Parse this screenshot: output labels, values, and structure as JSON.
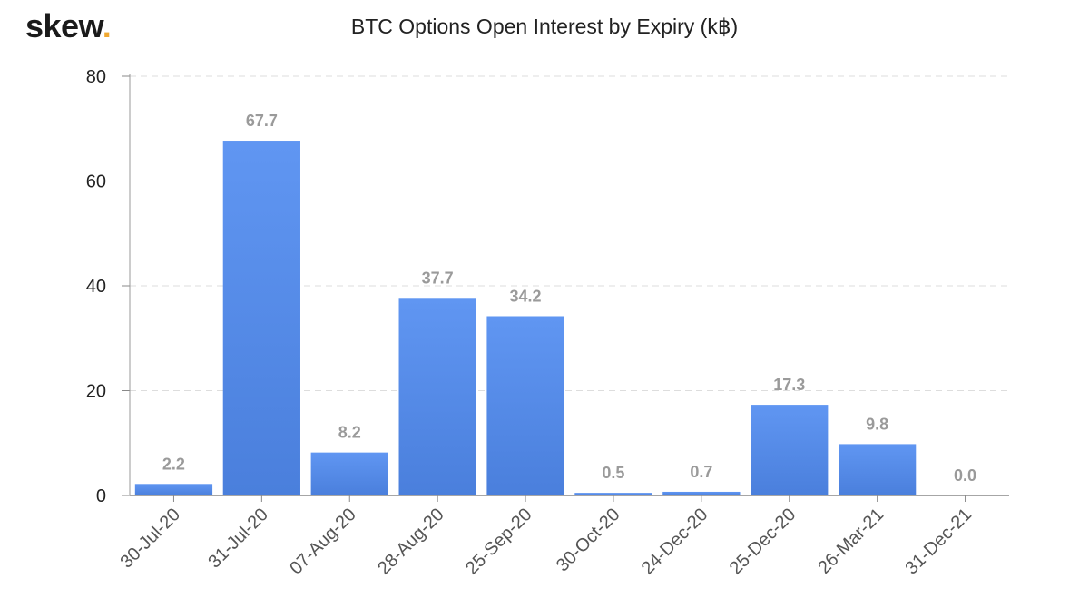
{
  "logo": {
    "text": "skew",
    "dot": "."
  },
  "chart_data": {
    "type": "bar",
    "title": "BTC Options Open Interest by Expiry (k฿)",
    "categories": [
      "30-Jul-20",
      "31-Jul-20",
      "07-Aug-20",
      "28-Aug-20",
      "25-Sep-20",
      "30-Oct-20",
      "24-Dec-20",
      "25-Dec-20",
      "26-Mar-21",
      "31-Dec-21"
    ],
    "values": [
      2.2,
      67.7,
      8.2,
      37.7,
      34.2,
      0.5,
      0.7,
      17.3,
      9.8,
      0.0
    ],
    "data_labels": [
      "2.2",
      "67.7",
      "8.2",
      "37.7",
      "34.2",
      "0.5",
      "0.7",
      "17.3",
      "9.8",
      "0.0"
    ],
    "ylim": [
      0,
      80
    ],
    "yticks": [
      0,
      20,
      40,
      60,
      80
    ],
    "grid": true,
    "legend": "none",
    "bar_color_top": "#6096f2",
    "bar_color_bottom": "#4a7fdc"
  }
}
